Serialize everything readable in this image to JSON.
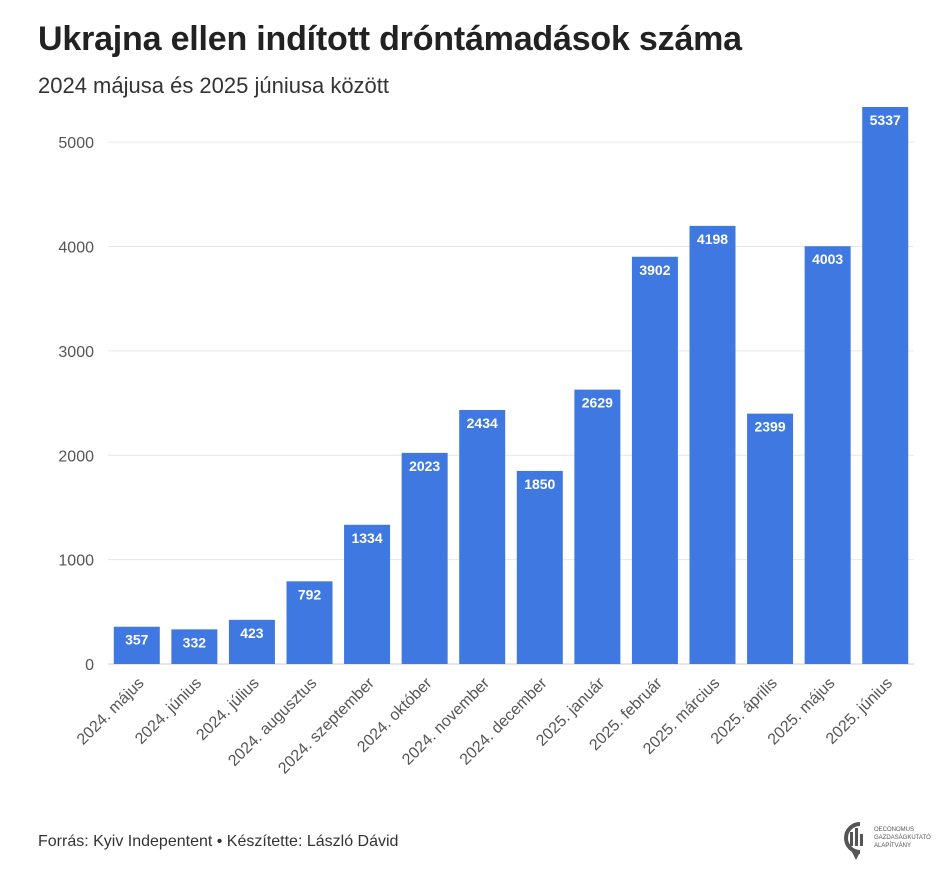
{
  "chart_data": {
    "type": "bar",
    "title": "Ukrajna ellen indított dróntámadások száma",
    "subtitle": "2024 májusa és 2025 júniusa között",
    "categories": [
      "2024. május",
      "2024. június",
      "2024. július",
      "2024. augusztus",
      "2024. szeptember",
      "2024. október",
      "2024. november",
      "2024. december",
      "2025. január",
      "2025. február",
      "2025. március",
      "2025. április",
      "2025. május",
      "2025. június"
    ],
    "values": [
      357,
      332,
      423,
      792,
      1334,
      2023,
      2434,
      1850,
      2629,
      3902,
      4198,
      2399,
      4003,
      5337
    ],
    "yticks": [
      0,
      1000,
      2000,
      3000,
      4000,
      5000
    ],
    "ylim": [
      0,
      5500
    ],
    "xlabel": "",
    "ylabel": "",
    "grid": true,
    "legend": "none",
    "colors": {
      "bar": "#3f78e0",
      "grid": "#e6e6e6",
      "axis": "#cccccc",
      "label_text": "#ffffff"
    }
  },
  "footer": {
    "source": "Forrás: Kyiv Indepentent • Készítette: László Dávid"
  },
  "logo": {
    "line1": "OECONOMUS",
    "line2": "GAZDASÁGKUTATÓ",
    "line3": "ALAPÍTVÁNY",
    "icon": "oeconomus-logo-icon"
  }
}
